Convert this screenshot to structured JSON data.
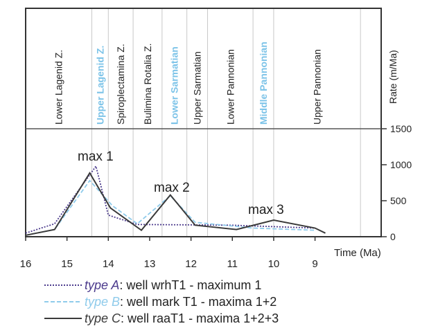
{
  "chart_data": {
    "type": "line",
    "x_label": "Time (Ma)",
    "y_label": "Rate (m/Ma)",
    "xlim": [
      16,
      7.4
    ],
    "xticks": [
      16,
      15,
      14,
      13,
      12,
      11,
      10,
      9
    ],
    "ylim": [
      0,
      1500
    ],
    "yticks": [
      0,
      500,
      1000,
      1500
    ],
    "zones": [
      {
        "name": "Lower Lagenid Z.",
        "from": 16,
        "to": 14.4,
        "color": "#222222"
      },
      {
        "name": "Upper Lagenid Z.",
        "from": 14.4,
        "to": 14.0,
        "color": "#7cc3e8"
      },
      {
        "name": "Spiroplectamina Z.",
        "from": 14.0,
        "to": 13.4,
        "color": "#222222"
      },
      {
        "name": "Bulimina Rotalia Z.",
        "from": 13.4,
        "to": 12.7,
        "color": "#222222"
      },
      {
        "name": "Lower Sarmatian",
        "from": 12.7,
        "to": 12.1,
        "color": "#7cc3e8"
      },
      {
        "name": "Upper Sarmatian",
        "from": 12.1,
        "to": 11.6,
        "color": "#222222"
      },
      {
        "name": "Lower Pannonian",
        "from": 11.6,
        "to": 10.5,
        "color": "#222222"
      },
      {
        "name": "Middle Pannonian",
        "from": 10.5,
        "to": 10.0,
        "color": "#7cc3e8"
      },
      {
        "name": "Upper Pannonian",
        "from": 10.0,
        "to": 7.9,
        "color": "#222222"
      }
    ],
    "annotations": [
      "max 1",
      "max 2",
      "max 3"
    ],
    "series": [
      {
        "name": "type A",
        "description": ": well wrhT1 - maximum 1",
        "color": "#4b3a8c",
        "dash": "2,2",
        "x": [
          16,
          15.3,
          14.3,
          14.0,
          13.3,
          11,
          9
        ],
        "values": [
          50,
          180,
          980,
          300,
          170,
          160,
          120
        ]
      },
      {
        "name": "type B",
        "description": ": well mark T1 - maxima 1+2",
        "color": "#8fcbeb",
        "dash": "6,3",
        "x": [
          16,
          15.3,
          14.45,
          13.9,
          13.3,
          12.5,
          11.9,
          10.5,
          9
        ],
        "values": [
          20,
          100,
          780,
          430,
          180,
          570,
          200,
          120,
          90
        ]
      },
      {
        "name": "type C",
        "description": ": well raaT1 - maxima 1+2+3",
        "color": "#3a3a3a",
        "dash": "",
        "x": [
          16,
          15.3,
          14.45,
          13.95,
          13.2,
          12.5,
          11.9,
          10.9,
          10.0,
          9.0,
          8.75
        ],
        "values": [
          20,
          100,
          885,
          400,
          90,
          580,
          160,
          100,
          230,
          120,
          50
        ]
      }
    ]
  }
}
